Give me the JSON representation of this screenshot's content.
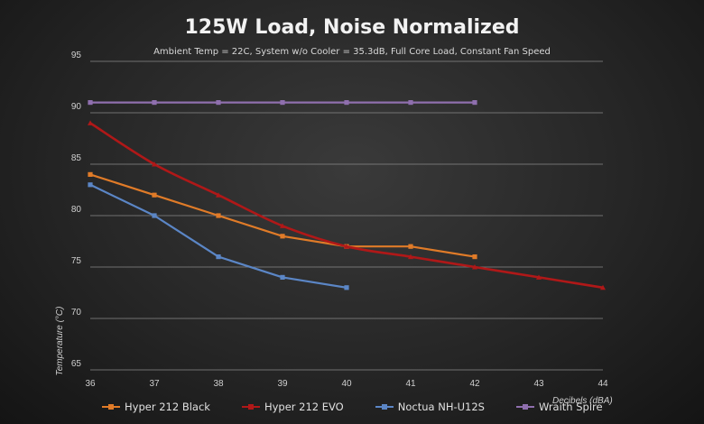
{
  "chart_data": {
    "type": "line",
    "title": "125W Load, Noise Normalized",
    "subtitle": "Ambient Temp = 22C, System w/o Cooler = 35.3dB, Full Core Load, Constant Fan Speed",
    "xlabel": "Decibels (dBA)",
    "ylabel": "Temperature (°C)",
    "xlim": [
      36,
      44
    ],
    "ylim": [
      65,
      95
    ],
    "xticks": [
      "36",
      "37",
      "38",
      "39",
      "40",
      "41",
      "42",
      "43",
      "44"
    ],
    "yticks": [
      "65",
      "70",
      "75",
      "80",
      "85",
      "90",
      "95"
    ],
    "grid": true,
    "legend_position": "bottom",
    "series": [
      {
        "name": "Hyper 212 Black",
        "color": "#e07b28",
        "x": [
          36,
          37,
          38,
          39,
          40,
          41,
          42
        ],
        "y": [
          84,
          82,
          80,
          78,
          77,
          77,
          76
        ]
      },
      {
        "name": "Hyper 212 EVO",
        "color": "#b01818",
        "x": [
          36,
          37,
          38,
          39,
          40,
          41,
          42,
          43,
          44
        ],
        "y": [
          89,
          85,
          82,
          79,
          77,
          76,
          75,
          74,
          73
        ]
      },
      {
        "name": "Noctua NH-U12S",
        "color": "#5b86c6",
        "x": [
          36,
          37,
          38,
          39,
          40
        ],
        "y": [
          83,
          80,
          76,
          74,
          73
        ]
      },
      {
        "name": "Wraith Spire",
        "color": "#8f6fae",
        "x": [
          36,
          37,
          38,
          39,
          40,
          41,
          42
        ],
        "y": [
          91,
          91,
          91,
          91,
          91,
          91,
          91
        ]
      }
    ]
  }
}
